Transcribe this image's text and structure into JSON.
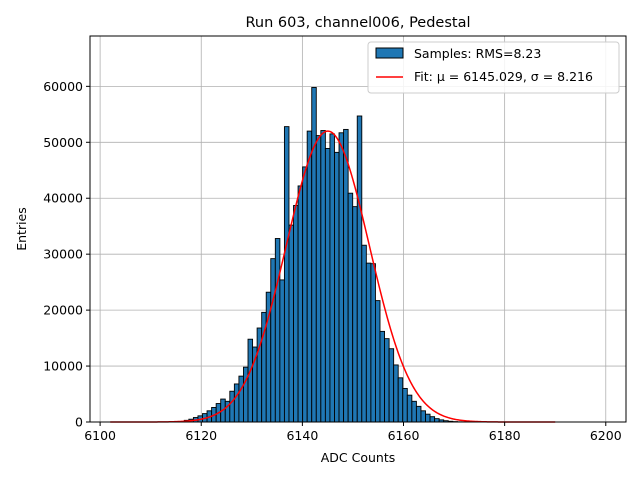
{
  "chart_data": {
    "type": "bar",
    "title": "Run 603, channel006, Pedestal",
    "xlabel": "ADC Counts",
    "ylabel": "Entries",
    "xlim": [
      6098,
      6204
    ],
    "ylim": [
      0,
      69000
    ],
    "xticks": [
      6100,
      6120,
      6140,
      6160,
      6180,
      6200
    ],
    "yticks": [
      0,
      10000,
      20000,
      30000,
      40000,
      50000,
      60000
    ],
    "grid": true,
    "legend": {
      "placement": "top-right",
      "entries": [
        {
          "label": "Samples: RMS=8.23",
          "kind": "patch"
        },
        {
          "label": "Fit: μ = 6145.029, σ = 8.216",
          "kind": "line"
        }
      ]
    },
    "colors": {
      "bar": "#1f77b4",
      "edge": "#000000",
      "fit": "#ff0000",
      "grid": "#b0b0b0"
    },
    "histogram": {
      "x_start": 6102,
      "x_end": 6190,
      "bin_width": 0.9,
      "values": [
        0,
        0,
        0,
        0,
        0,
        0,
        0,
        0,
        0,
        0,
        0,
        0,
        0,
        0,
        0,
        0,
        0,
        0,
        0,
        0,
        0,
        0,
        0,
        0,
        0,
        0,
        0,
        0,
        0,
        0,
        0,
        0,
        0,
        0,
        0,
        0,
        0,
        0,
        0,
        0,
        0,
        0,
        0,
        0,
        0,
        0,
        0,
        0,
        0,
        0,
        0,
        0,
        0,
        0,
        0,
        0,
        0,
        0,
        0,
        0,
        0,
        0,
        0,
        0,
        0,
        0,
        0,
        0,
        0,
        0,
        0,
        0,
        0,
        0,
        0,
        0,
        0,
        0,
        0,
        0,
        0,
        0,
        0,
        0,
        0,
        0,
        0,
        0,
        0,
        0,
        0,
        0,
        0,
        0,
        0,
        0,
        0,
        0,
        0,
        0
      ]
    },
    "bins": {
      "x": [
        6117.1,
        6118.0,
        6118.9,
        6119.8,
        6120.7,
        6121.6,
        6122.5,
        6123.4,
        6124.3,
        6125.2,
        6126.1,
        6127.0,
        6127.9,
        6128.8,
        6129.7,
        6130.6,
        6131.5,
        6132.4,
        6133.3,
        6134.2,
        6135.1,
        6136.0,
        6136.9,
        6137.8,
        6138.7,
        6139.6,
        6140.5,
        6141.4,
        6142.3,
        6143.2,
        6144.1,
        6145.0,
        6145.9,
        6146.8,
        6147.7,
        6148.6,
        6149.5,
        6150.4,
        6151.3,
        6152.2,
        6153.1,
        6154.0,
        6154.9,
        6155.8,
        6156.7,
        6157.6,
        6158.5,
        6159.4,
        6160.3,
        6161.2,
        6162.1,
        6163.0,
        6163.9,
        6164.8,
        6165.7,
        6166.6,
        6167.5,
        6168.4,
        6169.3,
        6170.2,
        6171.1,
        6172.0
      ],
      "counts": [
        300,
        500,
        800,
        1100,
        1500,
        2000,
        2600,
        3300,
        4100,
        3700,
        5500,
        6800,
        8200,
        9800,
        14800,
        13400,
        16800,
        19600,
        23200,
        29200,
        32800,
        25400,
        52800,
        35200,
        38700,
        42200,
        45600,
        52000,
        59800,
        51200,
        52100,
        48900,
        51500,
        48200,
        51700,
        52300,
        40900,
        38500,
        54700,
        31600,
        28400,
        28300,
        21700,
        16200,
        14900,
        13100,
        10200,
        7900,
        6000,
        4800,
        3700,
        2800,
        2000,
        1400,
        950,
        600,
        380,
        230,
        130,
        70,
        35,
        15
      ]
    },
    "fit": {
      "mu": 6145.029,
      "sigma": 8.216,
      "amplitude": 52000,
      "x_range": [
        6102,
        6190
      ]
    }
  }
}
